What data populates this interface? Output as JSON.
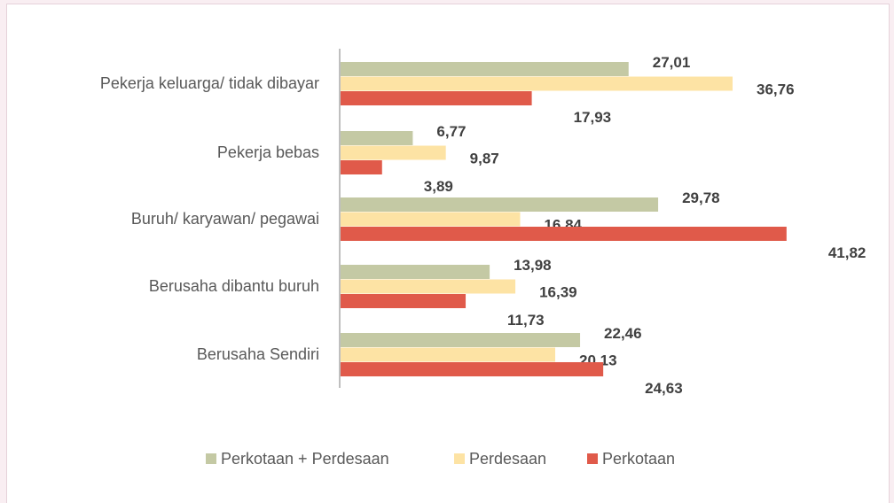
{
  "chart_data": {
    "type": "bar",
    "orientation": "horizontal",
    "categories": [
      "Pekerja keluarga/ tidak dibayar",
      "Pekerja bebas",
      "Buruh/ karyawan/ pegawai",
      "Berusaha dibantu buruh",
      "Berusaha Sendiri"
    ],
    "series": [
      {
        "name": "Perkotaan + Perdesaan",
        "color": "#c4c9a4",
        "values": [
          27.01,
          6.77,
          29.78,
          13.98,
          22.46
        ],
        "labels": [
          "27,01",
          "6,77",
          "29,78",
          "13,98",
          "22,46"
        ]
      },
      {
        "name": "Perdesaan",
        "color": "#fde3a4",
        "values": [
          36.76,
          9.87,
          16.84,
          16.39,
          20.13
        ],
        "labels": [
          "36,76",
          "9,87",
          "16,84",
          "16,39",
          "20,13"
        ]
      },
      {
        "name": "Perkotaan",
        "color": "#e05a4a",
        "values": [
          17.93,
          3.89,
          41.82,
          11.73,
          24.63
        ],
        "labels": [
          "17,93",
          "3,89",
          "41,82",
          "11,73",
          "24,63"
        ]
      }
    ],
    "xlim": [
      0,
      42
    ],
    "legend_position": "bottom",
    "grid": false
  }
}
